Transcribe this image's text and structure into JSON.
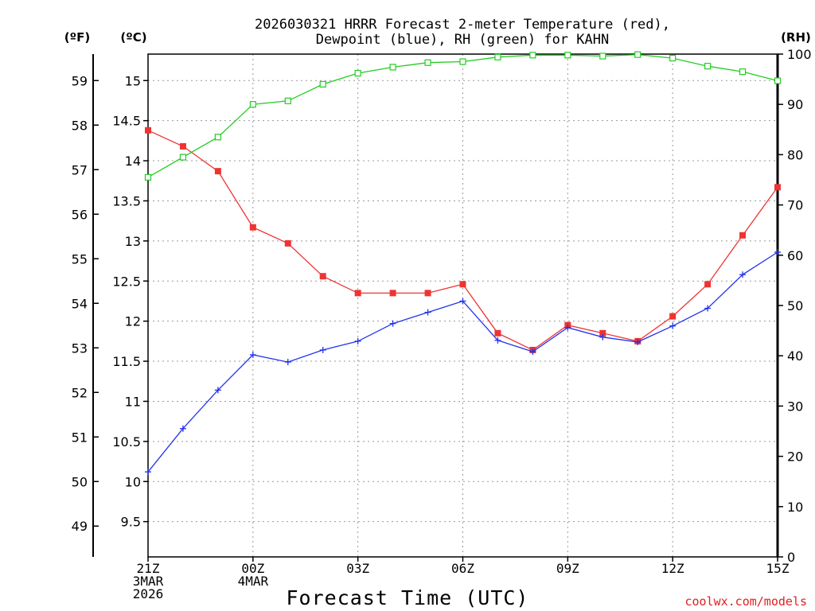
{
  "chart_data": {
    "type": "line",
    "title": [
      "2026030321 HRRR Forecast 2-meter Temperature (red),",
      "Dewpoint (blue), RH (green) for KAHN"
    ],
    "xlabel": "Forecast Time (UTC)",
    "credit": "coolwx.com/models",
    "unit_labels": {
      "fahrenheit": "(ºF)",
      "celsius": "(ºC)",
      "rh": "(RH)"
    },
    "x": [
      0,
      1,
      2,
      3,
      4,
      5,
      6,
      7,
      8,
      9,
      10,
      11,
      12,
      13,
      14,
      15,
      16,
      17,
      18
    ],
    "xlim": [
      0,
      18
    ],
    "x_ticks": [
      {
        "x": 0,
        "lines": [
          "21Z",
          "3MAR",
          "2026"
        ]
      },
      {
        "x": 3,
        "lines": [
          "00Z",
          "4MAR"
        ]
      },
      {
        "x": 6,
        "lines": [
          "03Z"
        ]
      },
      {
        "x": 9,
        "lines": [
          "06Z"
        ]
      },
      {
        "x": 12,
        "lines": [
          "09Z"
        ]
      },
      {
        "x": 15,
        "lines": [
          "12Z"
        ]
      },
      {
        "x": 18,
        "lines": [
          "15Z"
        ]
      }
    ],
    "celsius_axis": {
      "ylim": [
        9.06,
        15.33
      ],
      "ticks": [
        "9.5",
        "10",
        "10.5",
        "11",
        "11.5",
        "12",
        "12.5",
        "13",
        "13.5",
        "14",
        "14.5",
        "15"
      ]
    },
    "fahrenheit_axis": {
      "ticks": [
        "49",
        "50",
        "51",
        "52",
        "53",
        "54",
        "55",
        "56",
        "57",
        "58",
        "59"
      ]
    },
    "rh_axis": {
      "ylim": [
        0,
        100
      ],
      "ticks": [
        "0",
        "10",
        "20",
        "30",
        "40",
        "50",
        "60",
        "70",
        "80",
        "90",
        "100"
      ]
    },
    "series": [
      {
        "name": "Temperature",
        "axis": "celsius",
        "color": "#ee3333",
        "marker": "filled-square",
        "values": [
          14.38,
          14.18,
          13.87,
          13.17,
          12.97,
          12.56,
          12.35,
          12.35,
          12.35,
          12.46,
          11.85,
          11.64,
          11.95,
          11.85,
          11.75,
          12.06,
          12.46,
          13.07,
          13.67
        ]
      },
      {
        "name": "Dewpoint",
        "axis": "celsius",
        "color": "#2233ee",
        "marker": "plus",
        "values": [
          10.12,
          10.66,
          11.14,
          11.58,
          11.49,
          11.64,
          11.75,
          11.97,
          12.11,
          12.25,
          11.76,
          11.62,
          11.92,
          11.8,
          11.74,
          11.94,
          12.16,
          12.58,
          12.86
        ]
      },
      {
        "name": "RH",
        "axis": "rh",
        "color": "#22cc22",
        "marker": "open-square",
        "values": [
          75.5,
          79.5,
          83.5,
          90.0,
          90.7,
          94.0,
          96.2,
          97.4,
          98.3,
          98.5,
          99.4,
          99.8,
          99.8,
          99.6,
          99.9,
          99.2,
          97.6,
          96.5,
          94.7
        ]
      }
    ]
  }
}
